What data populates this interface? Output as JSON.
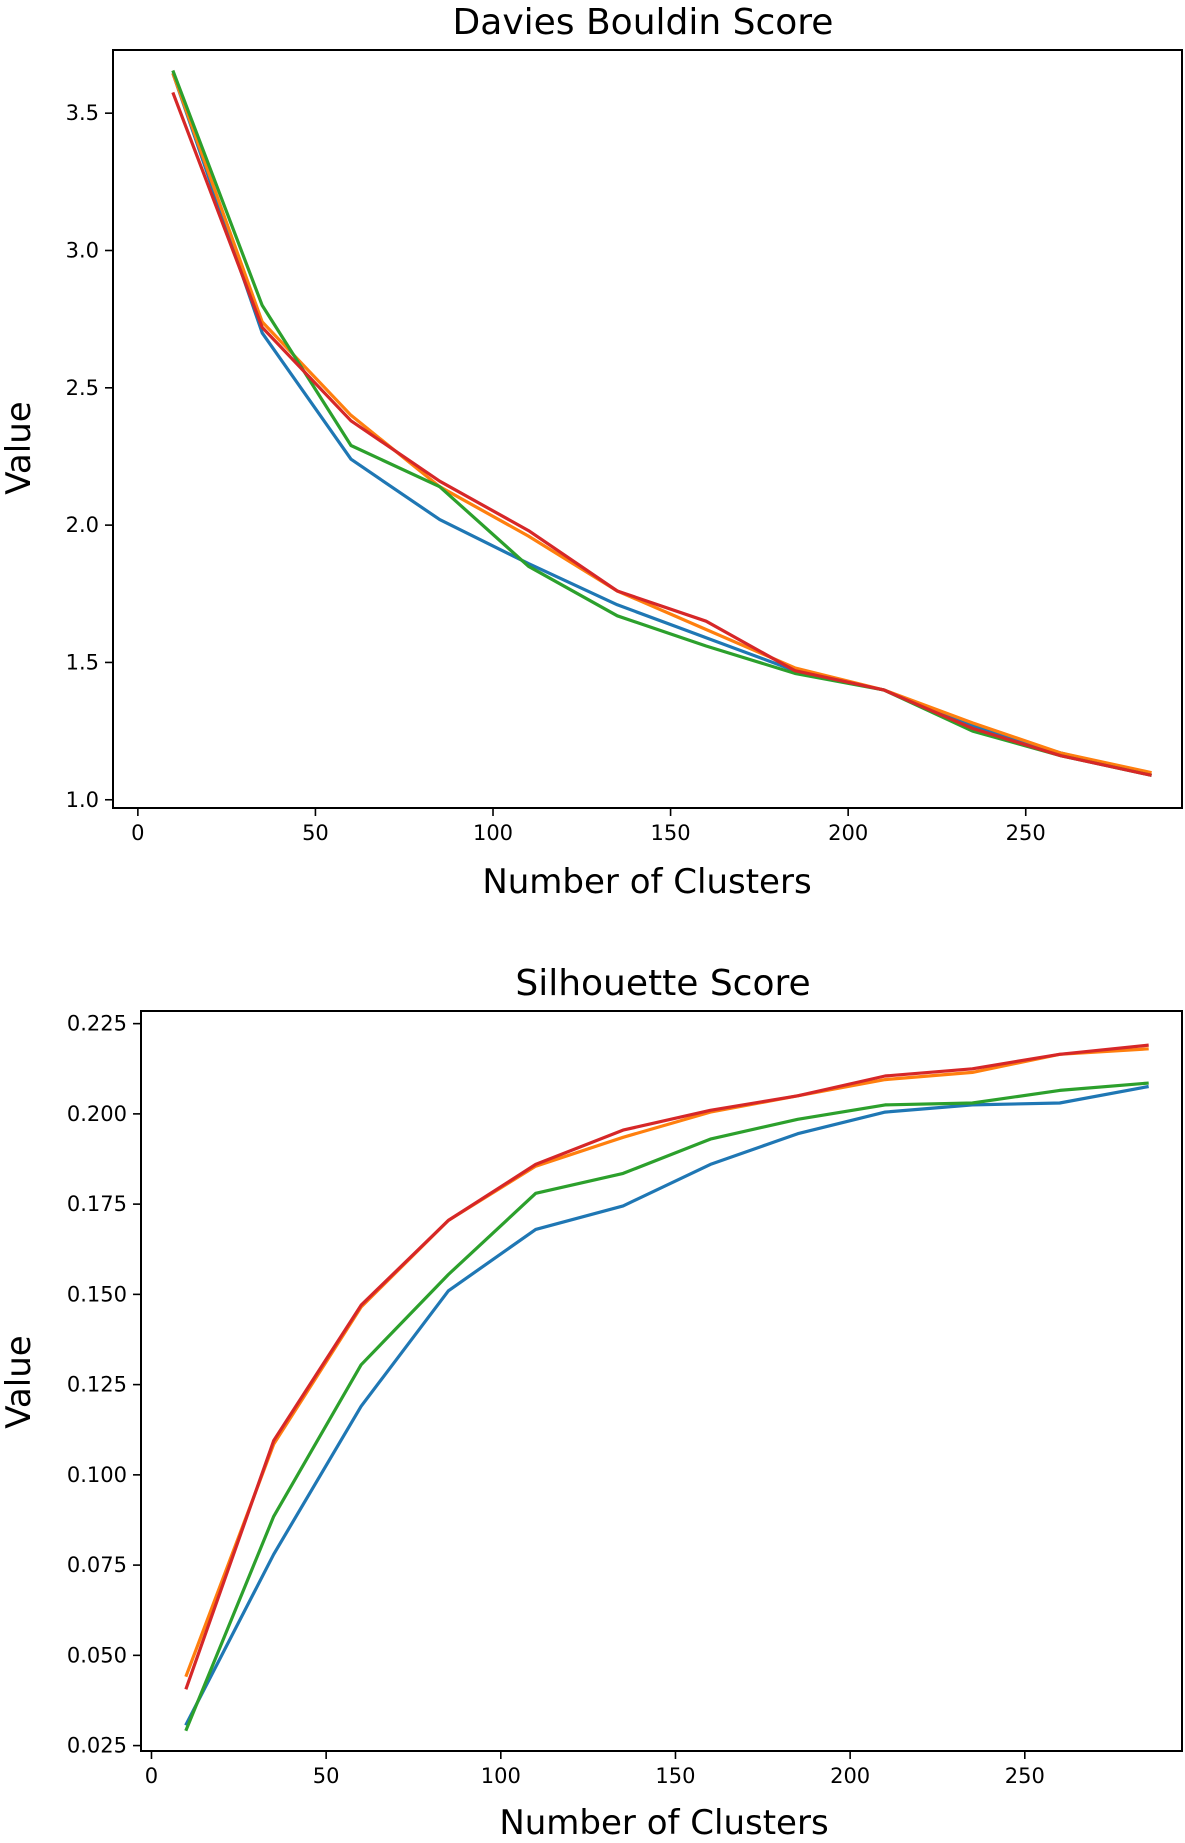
{
  "chart_data": [
    {
      "type": "line",
      "title": "Davies Bouldin Score",
      "xlabel": "Number of Clusters",
      "ylabel": "Value",
      "xlim": [
        -7,
        294
      ],
      "ylim": [
        0.97,
        3.73
      ],
      "xticks": [
        0,
        50,
        100,
        150,
        200,
        250
      ],
      "xtick_labels": [
        "0",
        "50",
        "100",
        "150",
        "200",
        "250"
      ],
      "yticks": [
        1.0,
        1.5,
        2.0,
        2.5,
        3.0,
        3.5
      ],
      "ytick_labels": [
        "1.0",
        "1.5",
        "2.0",
        "2.5",
        "3.0",
        "3.5"
      ],
      "grid": false,
      "x": [
        10,
        35,
        60,
        85,
        110,
        135,
        160,
        185,
        210,
        235,
        260,
        285
      ],
      "series": [
        {
          "name": "blue",
          "color": "#1f77b4",
          "values": [
            3.64,
            2.7,
            2.24,
            2.02,
            1.86,
            1.71,
            1.59,
            1.47,
            1.4,
            1.27,
            1.17,
            1.09
          ]
        },
        {
          "name": "orange",
          "color": "#ff7f0e",
          "values": [
            3.64,
            2.74,
            2.4,
            2.14,
            1.96,
            1.76,
            1.62,
            1.48,
            1.4,
            1.28,
            1.17,
            1.1
          ]
        },
        {
          "name": "green",
          "color": "#2ca02c",
          "values": [
            3.65,
            2.8,
            2.29,
            2.14,
            1.85,
            1.67,
            1.56,
            1.46,
            1.4,
            1.25,
            1.16,
            1.09
          ]
        },
        {
          "name": "red",
          "color": "#d62728",
          "values": [
            3.57,
            2.72,
            2.38,
            2.16,
            1.98,
            1.76,
            1.65,
            1.47,
            1.4,
            1.26,
            1.16,
            1.09
          ]
        }
      ]
    },
    {
      "type": "line",
      "title": "Silhouette Score",
      "xlabel": "Number of Clusters",
      "ylabel": "Value",
      "xlim": [
        -3,
        295
      ],
      "ylim": [
        0.0235,
        0.2285
      ],
      "xticks": [
        0,
        50,
        100,
        150,
        200,
        250
      ],
      "xtick_labels": [
        "0",
        "50",
        "100",
        "150",
        "200",
        "250"
      ],
      "yticks": [
        0.025,
        0.05,
        0.075,
        0.1,
        0.125,
        0.15,
        0.175,
        0.2,
        0.225
      ],
      "ytick_labels": [
        "0.025",
        "0.050",
        "0.075",
        "0.100",
        "0.125",
        "0.150",
        "0.175",
        "0.200",
        "0.225"
      ],
      "grid": false,
      "x": [
        10,
        35,
        60,
        85,
        110,
        135,
        160,
        185,
        210,
        235,
        260,
        285
      ],
      "series": [
        {
          "name": "blue",
          "color": "#1f77b4",
          "values": [
            0.031,
            0.078,
            0.119,
            0.151,
            0.168,
            0.1745,
            0.186,
            0.1945,
            0.2005,
            0.2025,
            0.203,
            0.2075
          ]
        },
        {
          "name": "orange",
          "color": "#ff7f0e",
          "values": [
            0.0445,
            0.1085,
            0.1465,
            0.1705,
            0.1855,
            0.1935,
            0.2005,
            0.205,
            0.2095,
            0.2115,
            0.2165,
            0.218
          ]
        },
        {
          "name": "green",
          "color": "#2ca02c",
          "values": [
            0.0295,
            0.0885,
            0.1305,
            0.1555,
            0.178,
            0.1835,
            0.193,
            0.1985,
            0.2025,
            0.203,
            0.2065,
            0.2085
          ]
        },
        {
          "name": "red",
          "color": "#d62728",
          "values": [
            0.041,
            0.1095,
            0.147,
            0.1705,
            0.186,
            0.1955,
            0.201,
            0.205,
            0.2105,
            0.2125,
            0.2165,
            0.219
          ]
        }
      ]
    }
  ]
}
